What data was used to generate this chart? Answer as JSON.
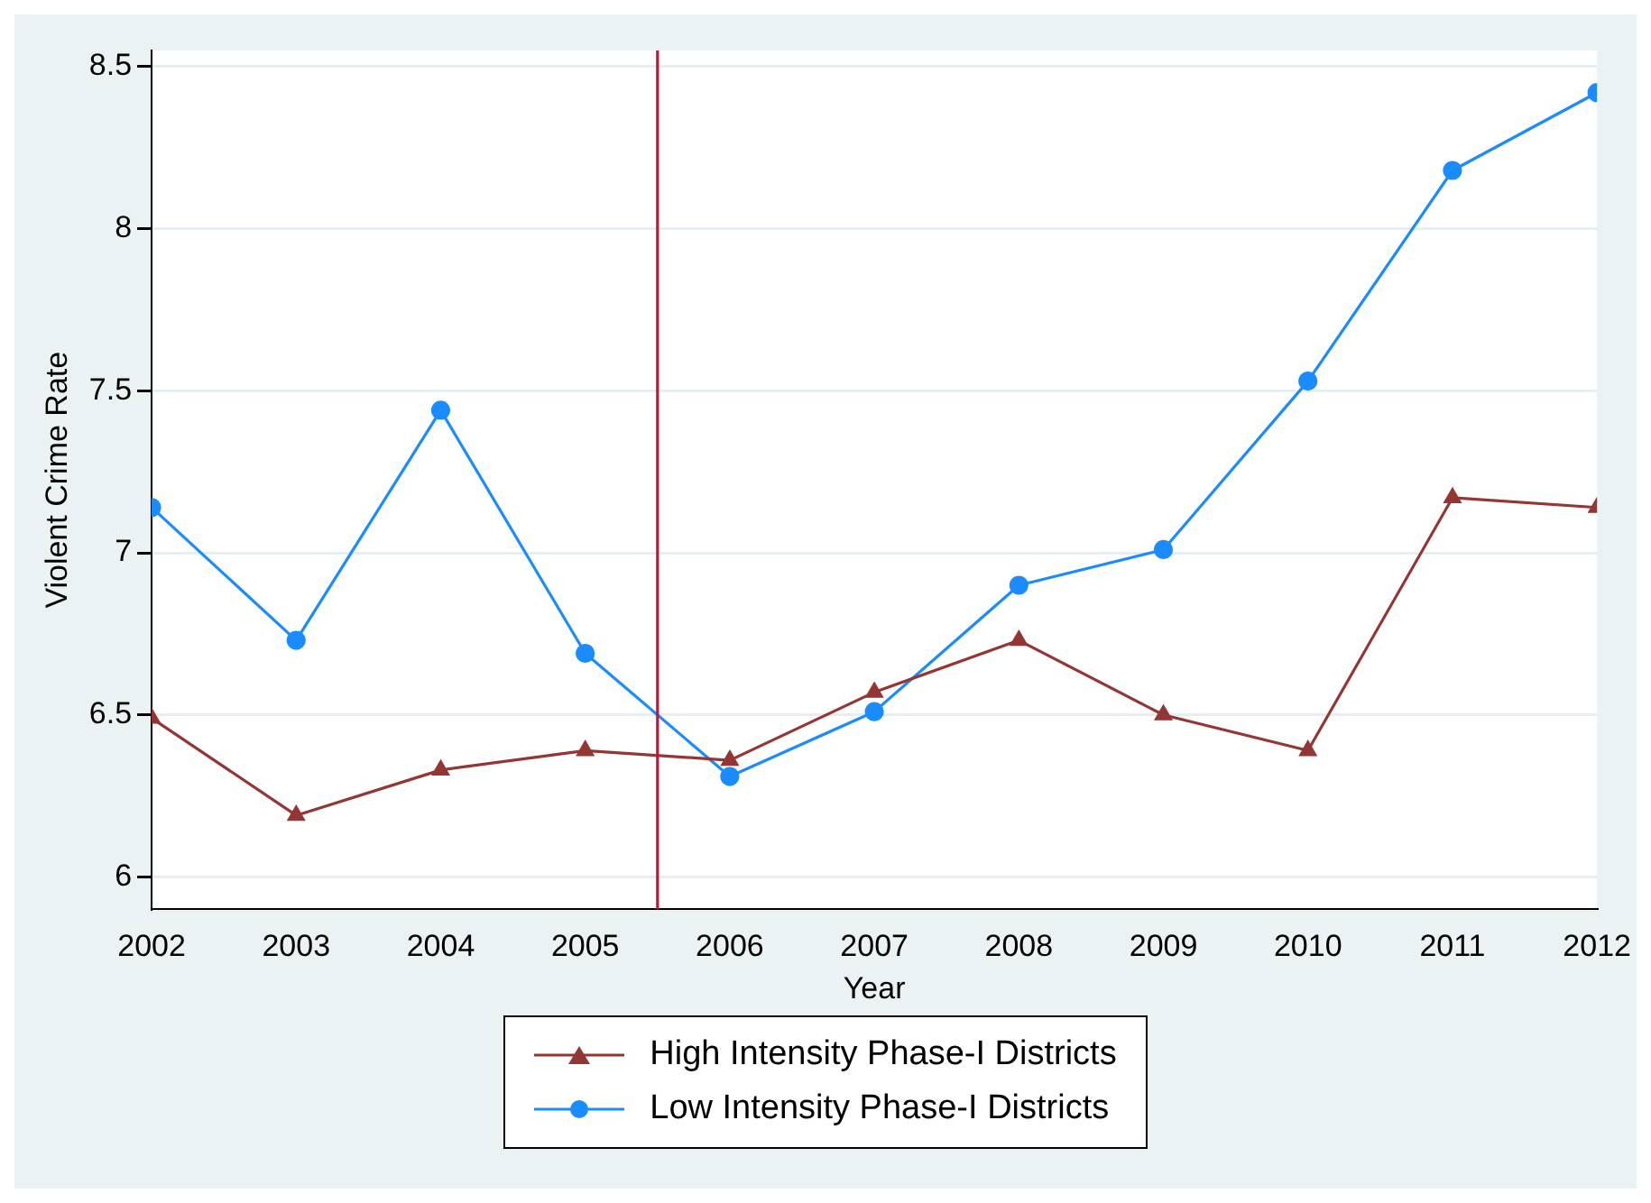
{
  "chart_data": {
    "type": "line",
    "xlabel": "Year",
    "ylabel": "Violent Crime Rate",
    "x": [
      2002,
      2003,
      2004,
      2005,
      2006,
      2007,
      2008,
      2009,
      2010,
      2011,
      2012
    ],
    "series": [
      {
        "name": "High Intensity Phase-I Districts",
        "color": "#943634",
        "marker": "triangle",
        "values": [
          6.49,
          6.19,
          6.33,
          6.39,
          6.36,
          6.57,
          6.73,
          6.5,
          6.39,
          7.17,
          7.14
        ]
      },
      {
        "name": "Low Intensity Phase-I Districts",
        "color": "#1a8cff",
        "marker": "circle",
        "values": [
          7.14,
          6.73,
          7.44,
          6.69,
          6.31,
          6.51,
          6.9,
          7.01,
          7.53,
          8.18,
          8.42
        ]
      }
    ],
    "xlim": [
      2002,
      2012
    ],
    "xticks": [
      2002,
      2003,
      2004,
      2005,
      2006,
      2007,
      2008,
      2009,
      2010,
      2011,
      2012
    ],
    "ylim": [
      5.9,
      8.55
    ],
    "yticks": [
      6,
      6.5,
      7,
      7.5,
      8,
      8.5
    ],
    "ref_lines": [
      {
        "axis": "x",
        "value": 2005.5,
        "color": "#c0163a"
      }
    ],
    "grid": "y",
    "legend": "bottom"
  }
}
